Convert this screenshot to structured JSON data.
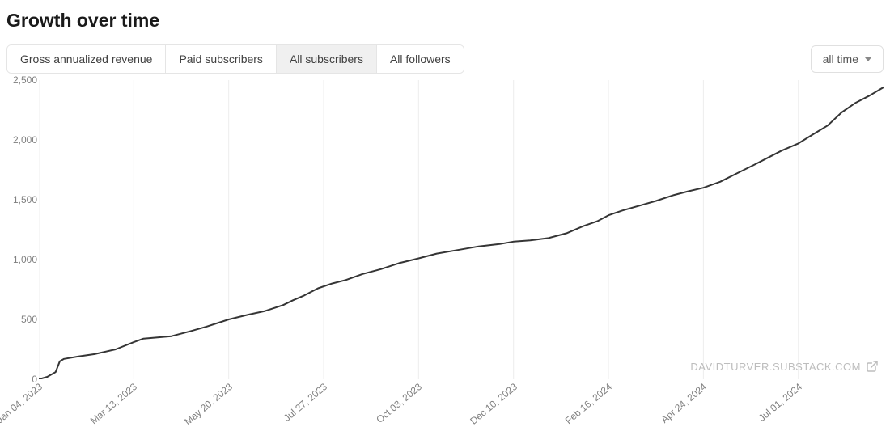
{
  "title": "Growth over time",
  "tabs": [
    {
      "label": "Gross annualized revenue",
      "active": false
    },
    {
      "label": "Paid subscribers",
      "active": false
    },
    {
      "label": "All subscribers",
      "active": true
    },
    {
      "label": "All followers",
      "active": false
    }
  ],
  "time_selector": {
    "label": "all time"
  },
  "watermark": "DAVIDTURVER.SUBSTACK.COM",
  "chart": {
    "type": "line",
    "background_color": "#ffffff",
    "grid_color": "#ededed",
    "line_color": "#353535",
    "line_width": 2,
    "axis_label_color": "#808080",
    "axis_label_fontsize": 12,
    "y": {
      "min": 0,
      "max": 2500,
      "ticks": [
        0,
        500,
        1000,
        1500,
        2000,
        2500
      ],
      "tick_labels": [
        "0",
        "500",
        "1,000",
        "1,500",
        "2,000",
        "2,500"
      ]
    },
    "x": {
      "min": 0,
      "max": 605,
      "ticks": [
        0,
        68,
        136,
        204,
        272,
        340,
        408,
        476,
        544
      ],
      "tick_labels": [
        "Jan 04, 2023",
        "Mar 13, 2023",
        "May 20, 2023",
        "Jul 27, 2023",
        "Oct 03, 2023",
        "Dec 10, 2023",
        "Feb 16, 2024",
        "Apr 24, 2024",
        "Jul 01, 2024"
      ],
      "label_rotation_deg": -40
    },
    "series": [
      {
        "name": "All subscribers",
        "points": [
          [
            0,
            0
          ],
          [
            6,
            20
          ],
          [
            12,
            60
          ],
          [
            15,
            150
          ],
          [
            18,
            170
          ],
          [
            28,
            190
          ],
          [
            40,
            210
          ],
          [
            55,
            250
          ],
          [
            68,
            310
          ],
          [
            75,
            340
          ],
          [
            85,
            350
          ],
          [
            95,
            360
          ],
          [
            108,
            400
          ],
          [
            120,
            440
          ],
          [
            136,
            500
          ],
          [
            150,
            540
          ],
          [
            162,
            570
          ],
          [
            175,
            620
          ],
          [
            182,
            660
          ],
          [
            190,
            700
          ],
          [
            200,
            760
          ],
          [
            210,
            800
          ],
          [
            220,
            830
          ],
          [
            232,
            880
          ],
          [
            245,
            920
          ],
          [
            258,
            970
          ],
          [
            272,
            1010
          ],
          [
            285,
            1050
          ],
          [
            300,
            1080
          ],
          [
            315,
            1110
          ],
          [
            330,
            1130
          ],
          [
            340,
            1150
          ],
          [
            352,
            1160
          ],
          [
            365,
            1180
          ],
          [
            378,
            1220
          ],
          [
            390,
            1280
          ],
          [
            400,
            1320
          ],
          [
            408,
            1370
          ],
          [
            418,
            1410
          ],
          [
            430,
            1450
          ],
          [
            442,
            1490
          ],
          [
            455,
            1540
          ],
          [
            465,
            1570
          ],
          [
            476,
            1600
          ],
          [
            488,
            1650
          ],
          [
            500,
            1720
          ],
          [
            512,
            1790
          ],
          [
            522,
            1850
          ],
          [
            532,
            1910
          ],
          [
            544,
            1970
          ],
          [
            555,
            2050
          ],
          [
            565,
            2120
          ],
          [
            575,
            2230
          ],
          [
            585,
            2310
          ],
          [
            595,
            2370
          ],
          [
            605,
            2440
          ]
        ]
      }
    ]
  }
}
